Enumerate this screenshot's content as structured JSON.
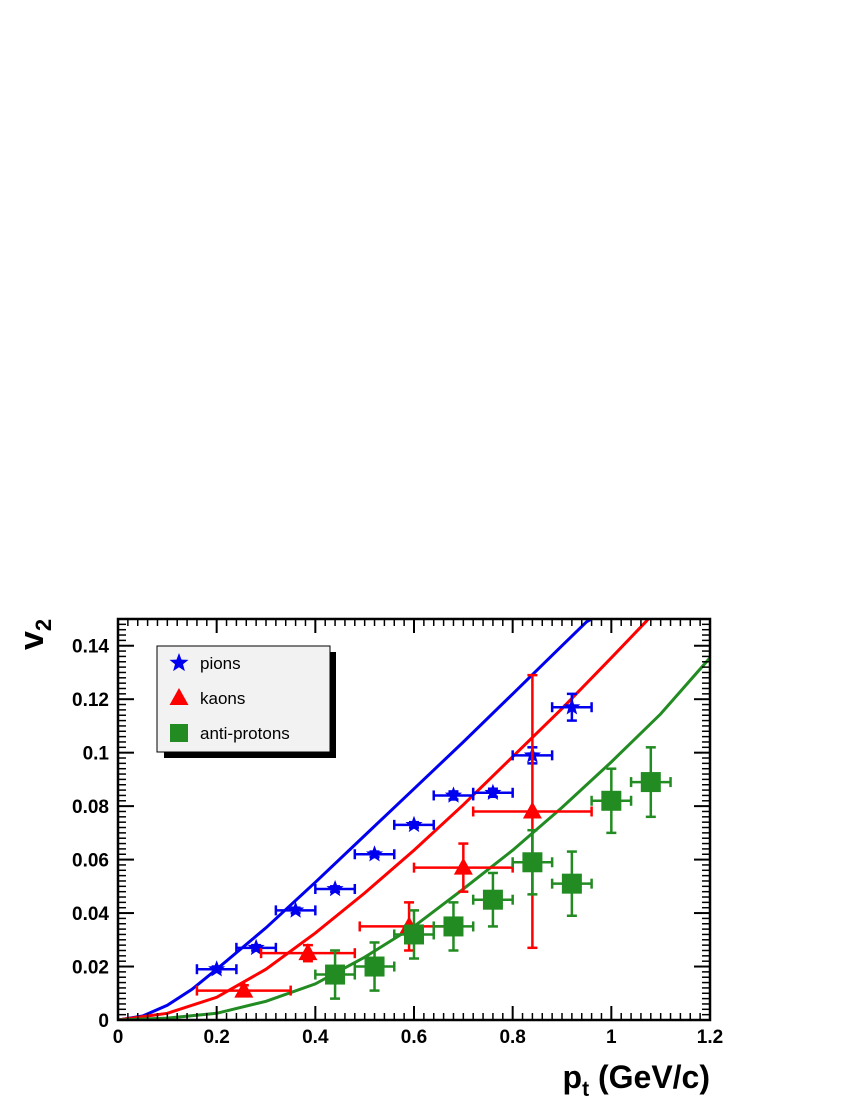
{
  "chart_data": {
    "type": "scatter",
    "title": "",
    "xlabel": {
      "main": "p",
      "sub": "t",
      "rest": " (GeV/c)"
    },
    "ylabel": {
      "main": "v",
      "sub": "2"
    },
    "xlim": [
      0,
      1.2
    ],
    "ylim": [
      0,
      0.15
    ],
    "x_ticks": [
      "0",
      "0.2",
      "0.4",
      "0.6",
      "0.8",
      "1",
      "1.2"
    ],
    "y_ticks": [
      "0",
      "0.02",
      "0.04",
      "0.06",
      "0.08",
      "0.1",
      "0.12",
      "0.14"
    ],
    "grid": false,
    "legend_position": "top-left",
    "series": [
      {
        "name": "pions",
        "marker": "star",
        "color": "#0000ee",
        "points": [
          {
            "x": 0.2,
            "y": 0.019,
            "xerr": 0.04,
            "yerr": 0.001
          },
          {
            "x": 0.28,
            "y": 0.027,
            "xerr": 0.04,
            "yerr": 0.001
          },
          {
            "x": 0.36,
            "y": 0.041,
            "xerr": 0.04,
            "yerr": 0.001
          },
          {
            "x": 0.44,
            "y": 0.049,
            "xerr": 0.04,
            "yerr": 0.001
          },
          {
            "x": 0.52,
            "y": 0.062,
            "xerr": 0.04,
            "yerr": 0.001
          },
          {
            "x": 0.6,
            "y": 0.073,
            "xerr": 0.04,
            "yerr": 0.001
          },
          {
            "x": 0.68,
            "y": 0.084,
            "xerr": 0.04,
            "yerr": 0.0015
          },
          {
            "x": 0.76,
            "y": 0.085,
            "xerr": 0.04,
            "yerr": 0.0015
          },
          {
            "x": 0.84,
            "y": 0.099,
            "xerr": 0.04,
            "yerr": 0.003
          },
          {
            "x": 0.92,
            "y": 0.117,
            "xerr": 0.04,
            "yerr": 0.005
          }
        ]
      },
      {
        "name": "kaons",
        "marker": "triangle",
        "color": "#ff0000",
        "points": [
          {
            "x": 0.255,
            "y": 0.011,
            "xerr": 0.095,
            "yerr": 0.002
          },
          {
            "x": 0.385,
            "y": 0.025,
            "xerr": 0.095,
            "yerr": 0.003
          },
          {
            "x": 0.59,
            "y": 0.035,
            "xerr": 0.1,
            "yerr": 0.009
          },
          {
            "x": 0.7,
            "y": 0.057,
            "xerr": 0.1,
            "yerr": 0.009
          },
          {
            "x": 0.84,
            "y": 0.078,
            "xerr": 0.12,
            "yerr": 0.051
          }
        ]
      },
      {
        "name": "anti-protons",
        "marker": "square",
        "color": "#228b22",
        "points": [
          {
            "x": 0.44,
            "y": 0.017,
            "xerr": 0.04,
            "yerr": 0.009
          },
          {
            "x": 0.52,
            "y": 0.02,
            "xerr": 0.04,
            "yerr": 0.009
          },
          {
            "x": 0.6,
            "y": 0.032,
            "xerr": 0.04,
            "yerr": 0.009
          },
          {
            "x": 0.68,
            "y": 0.035,
            "xerr": 0.04,
            "yerr": 0.009
          },
          {
            "x": 0.76,
            "y": 0.045,
            "xerr": 0.04,
            "yerr": 0.01
          },
          {
            "x": 0.84,
            "y": 0.059,
            "xerr": 0.04,
            "yerr": 0.012
          },
          {
            "x": 0.92,
            "y": 0.051,
            "xerr": 0.04,
            "yerr": 0.012
          },
          {
            "x": 1.0,
            "y": 0.082,
            "xerr": 0.04,
            "yerr": 0.012
          },
          {
            "x": 1.08,
            "y": 0.089,
            "xerr": 0.04,
            "yerr": 0.013
          }
        ]
      }
    ],
    "curves": [
      {
        "color": "#0000ee",
        "points": [
          [
            0,
            0
          ],
          [
            0.05,
            0.0015
          ],
          [
            0.1,
            0.0055
          ],
          [
            0.15,
            0.0115
          ],
          [
            0.2,
            0.019
          ],
          [
            0.3,
            0.0345
          ],
          [
            0.4,
            0.0515
          ],
          [
            0.5,
            0.069
          ],
          [
            0.6,
            0.0865
          ],
          [
            0.7,
            0.104
          ],
          [
            0.8,
            0.122
          ],
          [
            0.9,
            0.14
          ],
          [
            0.95,
            0.149
          ],
          [
            0.96,
            0.15
          ]
        ]
      },
      {
        "color": "#ff0000",
        "points": [
          [
            0,
            0
          ],
          [
            0.1,
            0.0025
          ],
          [
            0.2,
            0.0085
          ],
          [
            0.3,
            0.019
          ],
          [
            0.4,
            0.0325
          ],
          [
            0.5,
            0.0475
          ],
          [
            0.6,
            0.0635
          ],
          [
            0.7,
            0.0805
          ],
          [
            0.8,
            0.0985
          ],
          [
            0.9,
            0.1165
          ],
          [
            1.0,
            0.1355
          ],
          [
            1.07,
            0.149
          ],
          [
            1.075,
            0.15
          ]
        ]
      },
      {
        "color": "#228b22",
        "points": [
          [
            0,
            0
          ],
          [
            0.1,
            0.0007
          ],
          [
            0.2,
            0.0025
          ],
          [
            0.3,
            0.007
          ],
          [
            0.4,
            0.0135
          ],
          [
            0.5,
            0.0235
          ],
          [
            0.6,
            0.035
          ],
          [
            0.7,
            0.049
          ],
          [
            0.8,
            0.0635
          ],
          [
            0.9,
            0.0795
          ],
          [
            1.0,
            0.0965
          ],
          [
            1.1,
            0.1145
          ],
          [
            1.2,
            0.1355
          ]
        ]
      }
    ]
  }
}
